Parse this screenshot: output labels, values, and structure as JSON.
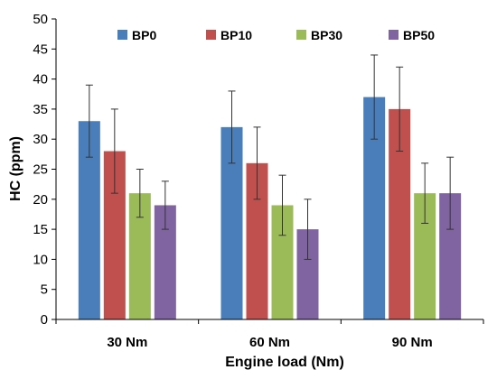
{
  "chart_data": {
    "type": "bar",
    "title": "",
    "xlabel": "Engine load (Nm)",
    "ylabel": "HC (ppm)",
    "ylim": [
      0,
      50
    ],
    "yticks": [
      0,
      5,
      10,
      15,
      20,
      25,
      30,
      35,
      40,
      45,
      50
    ],
    "grid": false,
    "legend_position": "top",
    "categories": [
      "30 Nm",
      "60 Nm",
      "90 Nm"
    ],
    "series": [
      {
        "name": "BP0",
        "color": "#4a7ebb",
        "values": [
          33,
          32,
          37
        ],
        "error_low": [
          27,
          26,
          30
        ],
        "error_high": [
          39,
          38,
          44
        ]
      },
      {
        "name": "BP10",
        "color": "#c0504d",
        "values": [
          28,
          26,
          35
        ],
        "error_low": [
          21,
          20,
          28
        ],
        "error_high": [
          35,
          32,
          42
        ]
      },
      {
        "name": "BP30",
        "color": "#9bbb59",
        "values": [
          21,
          19,
          21
        ],
        "error_low": [
          17,
          14,
          16
        ],
        "error_high": [
          25,
          24,
          26
        ]
      },
      {
        "name": "BP50",
        "color": "#8064a2",
        "values": [
          19,
          15,
          21
        ],
        "error_low": [
          15,
          10,
          15
        ],
        "error_high": [
          23,
          20,
          27
        ]
      }
    ]
  }
}
